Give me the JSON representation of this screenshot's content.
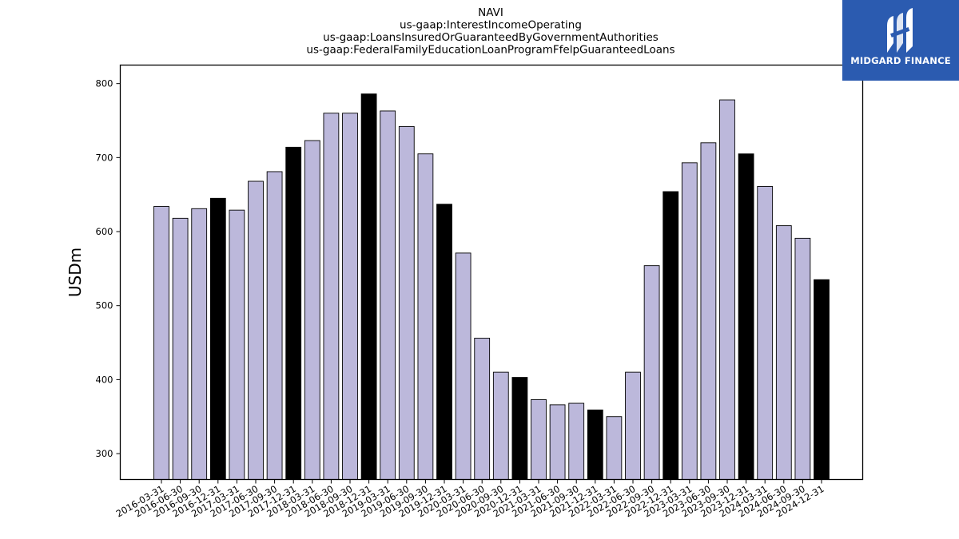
{
  "chart_data": {
    "type": "bar",
    "title_lines": [
      "NAVI",
      "us-gaap:InterestIncomeOperating",
      "us-gaap:LoansInsuredOrGuaranteedByGovernmentAuthorities",
      "us-gaap:FederalFamilyEducationLoanProgramFfelpGuaranteedLoans"
    ],
    "ylabel": "USDm",
    "xlabel": "",
    "ylim": [
      265,
      825
    ],
    "yticks": [
      300,
      400,
      500,
      600,
      700,
      800
    ],
    "categories": [
      "2016-03-31",
      "2016-06-30",
      "2016-09-30",
      "2016-12-31",
      "2017-03-31",
      "2017-06-30",
      "2017-09-30",
      "2017-12-31",
      "2018-03-31",
      "2018-06-30",
      "2018-09-30",
      "2018-12-31",
      "2019-03-31",
      "2019-06-30",
      "2019-09-30",
      "2019-12-31",
      "2020-03-31",
      "2020-06-30",
      "2020-09-30",
      "2020-12-31",
      "2021-03-31",
      "2021-06-30",
      "2021-09-30",
      "2021-12-31",
      "2022-03-31",
      "2022-06-30",
      "2022-09-30",
      "2022-12-31",
      "2023-03-31",
      "2023-06-30",
      "2023-09-30",
      "2023-12-31",
      "2024-03-31",
      "2024-06-30",
      "2024-09-30",
      "2024-12-31"
    ],
    "values": [
      634,
      618,
      631,
      645,
      629,
      668,
      681,
      714,
      723,
      760,
      760,
      786,
      763,
      742,
      705,
      637,
      571,
      456,
      410,
      403,
      373,
      366,
      368,
      359,
      350,
      410,
      554,
      654,
      693,
      720,
      778,
      705,
      661,
      608,
      591,
      535
    ],
    "colors": {
      "quarter_bar": "#bcb8db",
      "year_end_bar": "#000000",
      "edge": "#000000"
    }
  },
  "logo": {
    "text": "MIDGARD FINANCE",
    "background": "#2b5bb0"
  }
}
